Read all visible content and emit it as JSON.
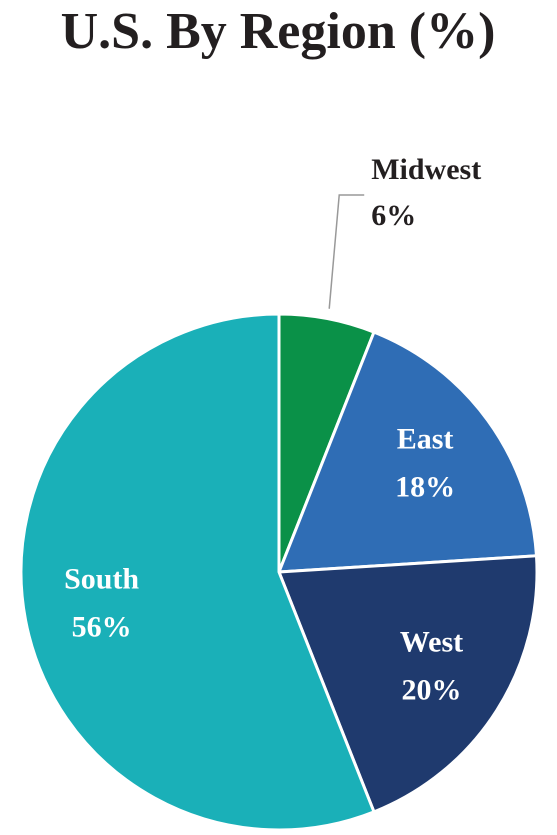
{
  "chart_data": {
    "type": "pie",
    "title": "U.S. By Region (%)",
    "categories": [
      "Midwest",
      "East",
      "West",
      "South"
    ],
    "values": [
      6,
      18,
      20,
      56
    ],
    "value_labels": [
      "6%",
      "18%",
      "20%",
      "56%"
    ],
    "colors": [
      "#0a9148",
      "#2f6db5",
      "#1f3a6e",
      "#1ab0b8"
    ]
  }
}
